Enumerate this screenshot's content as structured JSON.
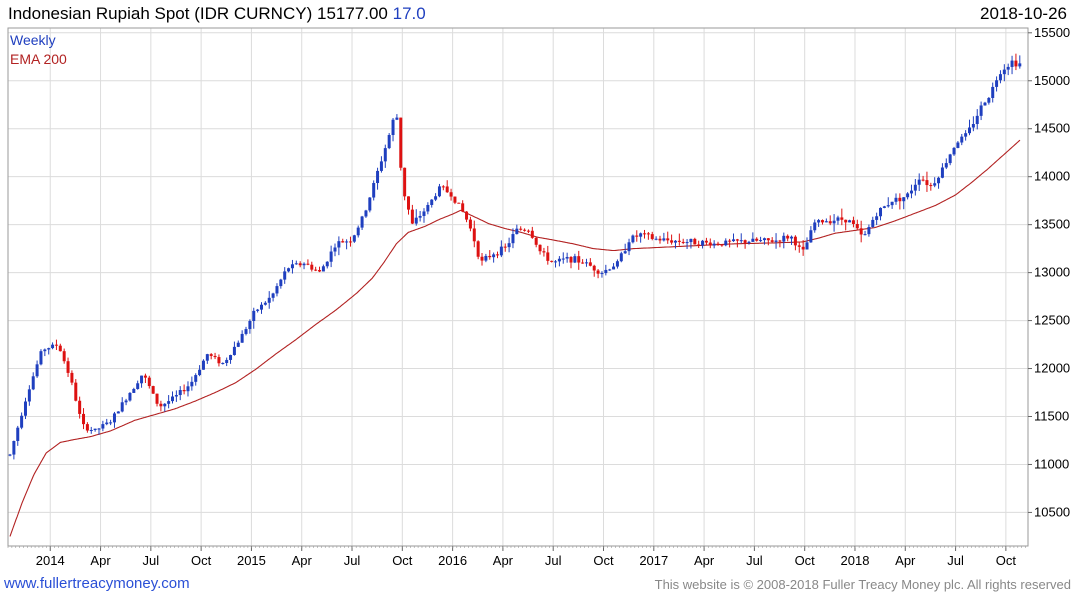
{
  "header": {
    "title": "Indonesian Rupiah Spot (IDR CURNCY)",
    "last_price": "15177.00",
    "change": "17.0",
    "date": "2018-10-26"
  },
  "footer": {
    "site": "www.fullertreacymoney.com",
    "copyright": "This website is © 2008-2018 Fuller Treacy Money plc. All rights reserved"
  },
  "chart_data": {
    "type": "line",
    "title": "Indonesian Rupiah Spot (IDR CURNCY)",
    "legend": [
      "Weekly",
      "EMA 200"
    ],
    "legend_placement": "top-left",
    "colors": {
      "up": "#1f3fbf",
      "down": "#dd1111",
      "ema": "#b22222",
      "grid": "#dcdcdc"
    },
    "grid": true,
    "y_axis_side": "right",
    "ylim": [
      10150,
      15550
    ],
    "y_ticks": [
      10500,
      11000,
      11500,
      12000,
      12500,
      13000,
      13500,
      14000,
      14500,
      15000,
      15500
    ],
    "x_ticks": [
      {
        "label": "2014",
        "x": 2014.0
      },
      {
        "label": "Apr",
        "x": 2014.25
      },
      {
        "label": "Jul",
        "x": 2014.5
      },
      {
        "label": "Oct",
        "x": 2014.75
      },
      {
        "label": "2015",
        "x": 2015.0
      },
      {
        "label": "Apr",
        "x": 2015.25
      },
      {
        "label": "Jul",
        "x": 2015.5
      },
      {
        "label": "Oct",
        "x": 2015.75
      },
      {
        "label": "2016",
        "x": 2016.0
      },
      {
        "label": "Apr",
        "x": 2016.25
      },
      {
        "label": "Jul",
        "x": 2016.5
      },
      {
        "label": "Oct",
        "x": 2016.75
      },
      {
        "label": "2017",
        "x": 2017.0
      },
      {
        "label": "Apr",
        "x": 2017.25
      },
      {
        "label": "Jul",
        "x": 2017.5
      },
      {
        "label": "Oct",
        "x": 2017.75
      },
      {
        "label": "2018",
        "x": 2018.0
      },
      {
        "label": "Apr",
        "x": 2018.25
      },
      {
        "label": "Jul",
        "x": 2018.5
      },
      {
        "label": "Oct",
        "x": 2018.75
      }
    ],
    "xlim": [
      2013.79,
      2018.86
    ],
    "price_close_keypoints": [
      [
        2013.8,
        11100
      ],
      [
        2013.88,
        11700
      ],
      [
        2013.96,
        12200
      ],
      [
        2014.04,
        12250
      ],
      [
        2014.1,
        11900
      ],
      [
        2014.16,
        11400
      ],
      [
        2014.22,
        11350
      ],
      [
        2014.3,
        11450
      ],
      [
        2014.38,
        11700
      ],
      [
        2014.46,
        11950
      ],
      [
        2014.54,
        11600
      ],
      [
        2014.62,
        11700
      ],
      [
        2014.7,
        11850
      ],
      [
        2014.78,
        12150
      ],
      [
        2014.86,
        12050
      ],
      [
        2014.94,
        12300
      ],
      [
        2015.02,
        12600
      ],
      [
        2015.1,
        12750
      ],
      [
        2015.18,
        13050
      ],
      [
        2015.26,
        13100
      ],
      [
        2015.34,
        13000
      ],
      [
        2015.42,
        13300
      ],
      [
        2015.5,
        13350
      ],
      [
        2015.56,
        13600
      ],
      [
        2015.62,
        14000
      ],
      [
        2015.68,
        14400
      ],
      [
        2015.72,
        14700
      ],
      [
        2015.75,
        13900
      ],
      [
        2015.8,
        13500
      ],
      [
        2015.88,
        13700
      ],
      [
        2015.94,
        13900
      ],
      [
        2016.0,
        13800
      ],
      [
        2016.06,
        13600
      ],
      [
        2016.1,
        13400
      ],
      [
        2016.14,
        13100
      ],
      [
        2016.2,
        13200
      ],
      [
        2016.26,
        13250
      ],
      [
        2016.32,
        13450
      ],
      [
        2016.38,
        13450
      ],
      [
        2016.44,
        13200
      ],
      [
        2016.5,
        13100
      ],
      [
        2016.58,
        13150
      ],
      [
        2016.66,
        13100
      ],
      [
        2016.74,
        13000
      ],
      [
        2016.82,
        13100
      ],
      [
        2016.88,
        13350
      ],
      [
        2016.94,
        13400
      ],
      [
        2017.0,
        13350
      ],
      [
        2017.1,
        13330
      ],
      [
        2017.2,
        13320
      ],
      [
        2017.3,
        13300
      ],
      [
        2017.4,
        13320
      ],
      [
        2017.5,
        13330
      ],
      [
        2017.6,
        13330
      ],
      [
        2017.68,
        13380
      ],
      [
        2017.74,
        13200
      ],
      [
        2017.8,
        13520
      ],
      [
        2017.88,
        13550
      ],
      [
        2017.96,
        13560
      ],
      [
        2018.0,
        13480
      ],
      [
        2018.04,
        13350
      ],
      [
        2018.1,
        13600
      ],
      [
        2018.18,
        13750
      ],
      [
        2018.26,
        13800
      ],
      [
        2018.32,
        14000
      ],
      [
        2018.38,
        13900
      ],
      [
        2018.44,
        14100
      ],
      [
        2018.5,
        14350
      ],
      [
        2018.56,
        14450
      ],
      [
        2018.62,
        14700
      ],
      [
        2018.68,
        14900
      ],
      [
        2018.72,
        15100
      ],
      [
        2018.78,
        15200
      ],
      [
        2018.82,
        15177
      ]
    ],
    "ema200_keypoints": [
      [
        2013.8,
        10250
      ],
      [
        2013.86,
        10600
      ],
      [
        2013.92,
        10900
      ],
      [
        2013.98,
        11120
      ],
      [
        2014.05,
        11230
      ],
      [
        2014.12,
        11260
      ],
      [
        2014.2,
        11290
      ],
      [
        2014.3,
        11350
      ],
      [
        2014.42,
        11460
      ],
      [
        2014.52,
        11520
      ],
      [
        2014.62,
        11580
      ],
      [
        2014.72,
        11660
      ],
      [
        2014.82,
        11750
      ],
      [
        2014.92,
        11850
      ],
      [
        2015.02,
        11990
      ],
      [
        2015.12,
        12150
      ],
      [
        2015.22,
        12300
      ],
      [
        2015.32,
        12460
      ],
      [
        2015.42,
        12610
      ],
      [
        2015.52,
        12780
      ],
      [
        2015.6,
        12940
      ],
      [
        2015.66,
        13110
      ],
      [
        2015.72,
        13300
      ],
      [
        2015.78,
        13420
      ],
      [
        2015.86,
        13480
      ],
      [
        2015.94,
        13560
      ],
      [
        2016.0,
        13610
      ],
      [
        2016.04,
        13650
      ],
      [
        2016.1,
        13590
      ],
      [
        2016.18,
        13510
      ],
      [
        2016.26,
        13460
      ],
      [
        2016.34,
        13420
      ],
      [
        2016.42,
        13370
      ],
      [
        2016.5,
        13340
      ],
      [
        2016.6,
        13300
      ],
      [
        2016.7,
        13250
      ],
      [
        2016.8,
        13230
      ],
      [
        2016.9,
        13250
      ],
      [
        2017.0,
        13260
      ],
      [
        2017.2,
        13280
      ],
      [
        2017.4,
        13300
      ],
      [
        2017.6,
        13310
      ],
      [
        2017.74,
        13320
      ],
      [
        2017.82,
        13360
      ],
      [
        2017.9,
        13410
      ],
      [
        2018.0,
        13440
      ],
      [
        2018.1,
        13470
      ],
      [
        2018.2,
        13540
      ],
      [
        2018.3,
        13620
      ],
      [
        2018.4,
        13700
      ],
      [
        2018.5,
        13810
      ],
      [
        2018.58,
        13940
      ],
      [
        2018.66,
        14080
      ],
      [
        2018.74,
        14230
      ],
      [
        2018.82,
        14380
      ]
    ]
  }
}
